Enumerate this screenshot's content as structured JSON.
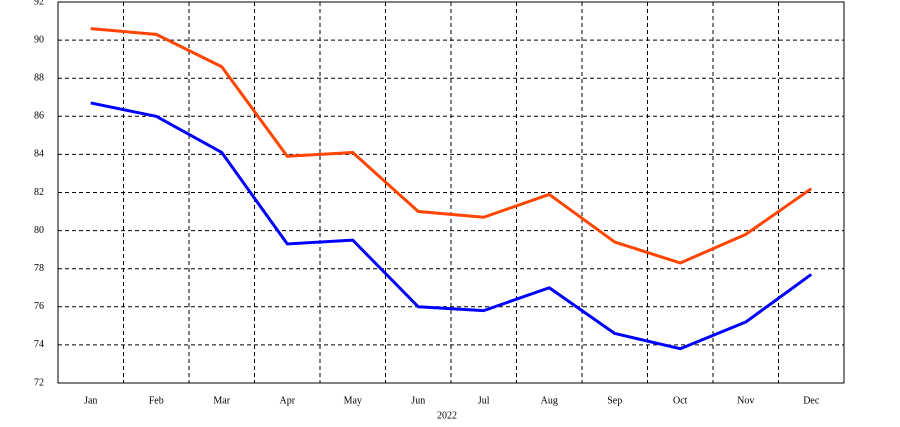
{
  "chart_data": {
    "type": "line",
    "x_label": "2022",
    "categories": [
      "Jan",
      "Feb",
      "Mar",
      "Apr",
      "May",
      "Jun",
      "Jul",
      "Aug",
      "Sep",
      "Oct",
      "Nov",
      "Dec"
    ],
    "series": [
      {
        "color": "#ff4500",
        "values": [
          90.6,
          90.3,
          88.6,
          83.9,
          84.1,
          81.0,
          80.7,
          81.9,
          79.4,
          78.3,
          79.8,
          82.2
        ]
      },
      {
        "color": "#0000ff",
        "values": [
          86.7,
          86.0,
          84.1,
          79.3,
          79.5,
          76.0,
          75.8,
          77.0,
          74.6,
          73.8,
          75.2,
          77.7
        ]
      }
    ],
    "ylim": [
      72,
      92
    ],
    "yticks": [
      72,
      74,
      76,
      78,
      80,
      82,
      84,
      86,
      88,
      90,
      92
    ],
    "grid": true
  }
}
